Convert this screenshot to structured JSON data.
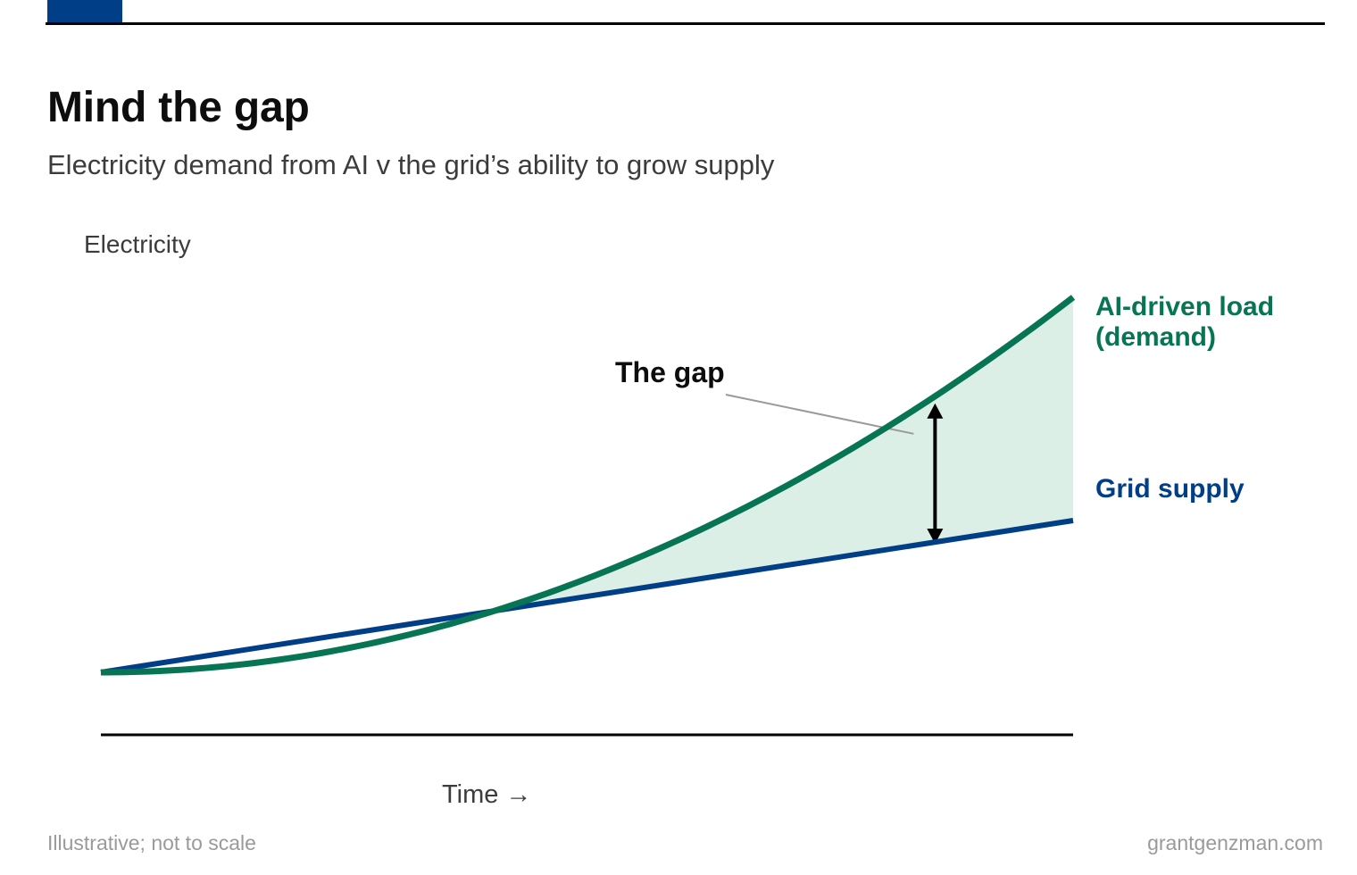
{
  "header": {
    "title": "Mind the gap",
    "subtitle": "Electricity demand from AI v the grid’s ability to grow supply"
  },
  "footer": {
    "note": "Illustrative; not to scale",
    "source": "grantgenzman.com"
  },
  "colors": {
    "accent": "#003f87",
    "demand": "#077553",
    "supply": "#003f87",
    "gap_fill": "#dcefe6",
    "gap_leader": "#9a9a9a"
  },
  "chart_data": {
    "type": "line",
    "ylabel": "Electricity",
    "xlabel": "Time →",
    "xlim": [
      0,
      1
    ],
    "ylim": [
      0,
      1
    ],
    "series": [
      {
        "name": "AI-driven load (demand)",
        "label_lines": [
          "AI-driven load",
          "(demand)"
        ],
        "x": [
          0,
          0.1,
          0.2,
          0.3,
          0.4,
          0.5,
          0.6,
          0.7,
          0.8,
          0.9,
          1.0
        ],
        "values": [
          0.14,
          0.161,
          0.196,
          0.245,
          0.308,
          0.385,
          0.476,
          0.581,
          0.7,
          0.833,
          0.98
        ]
      },
      {
        "name": "Grid supply",
        "label_lines": [
          "Grid supply"
        ],
        "x": [
          0,
          1
        ],
        "values": [
          0.14,
          0.48
        ]
      }
    ],
    "annotation": {
      "text": "The gap",
      "x": 0.858
    },
    "grid": false,
    "legend": "direct labels at right end of lines"
  }
}
